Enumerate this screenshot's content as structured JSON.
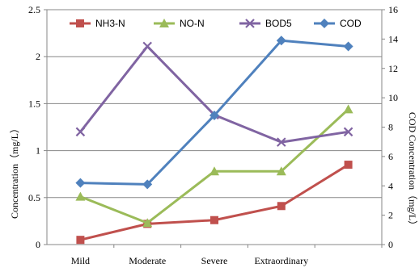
{
  "chart_data": {
    "type": "line",
    "categories": [
      "Mild",
      "Moderate",
      "Severe",
      "Extraordinary",
      ""
    ],
    "left_axis": {
      "label": "Concentration（mg/L）",
      "ylim": [
        0,
        2.5
      ],
      "ticks": [
        "0",
        "0.5",
        "1",
        "1.5",
        "2",
        "2.5"
      ],
      "tick_values": [
        0,
        0.5,
        1,
        1.5,
        2,
        2.5
      ]
    },
    "right_axis": {
      "label": "COD Concentration（mg/L）",
      "ylim": [
        0,
        16
      ],
      "ticks": [
        "0",
        "2",
        "4",
        "6",
        "8",
        "10",
        "12",
        "14",
        "16"
      ],
      "tick_values": [
        0,
        2,
        4,
        6,
        8,
        10,
        12,
        14,
        16
      ]
    },
    "grid": "horizontal",
    "legend_position": "top",
    "series": [
      {
        "name": "NH3-N",
        "axis": "left",
        "color": "#C0504D",
        "marker": "square",
        "values": [
          0.05,
          0.22,
          0.26,
          0.41,
          0.85
        ]
      },
      {
        "name": "NO-N",
        "axis": "left",
        "color": "#9BBB59",
        "marker": "triangle",
        "values": [
          0.51,
          0.23,
          0.78,
          0.78,
          1.44
        ]
      },
      {
        "name": "BOD5",
        "axis": "left",
        "color": "#8064A2",
        "marker": "x",
        "values": [
          1.2,
          2.11,
          1.38,
          1.09,
          1.2
        ]
      },
      {
        "name": "COD",
        "axis": "right",
        "color": "#4F81BD",
        "marker": "diamond",
        "values": [
          4.2,
          4.1,
          8.8,
          13.9,
          13.5
        ]
      }
    ]
  }
}
